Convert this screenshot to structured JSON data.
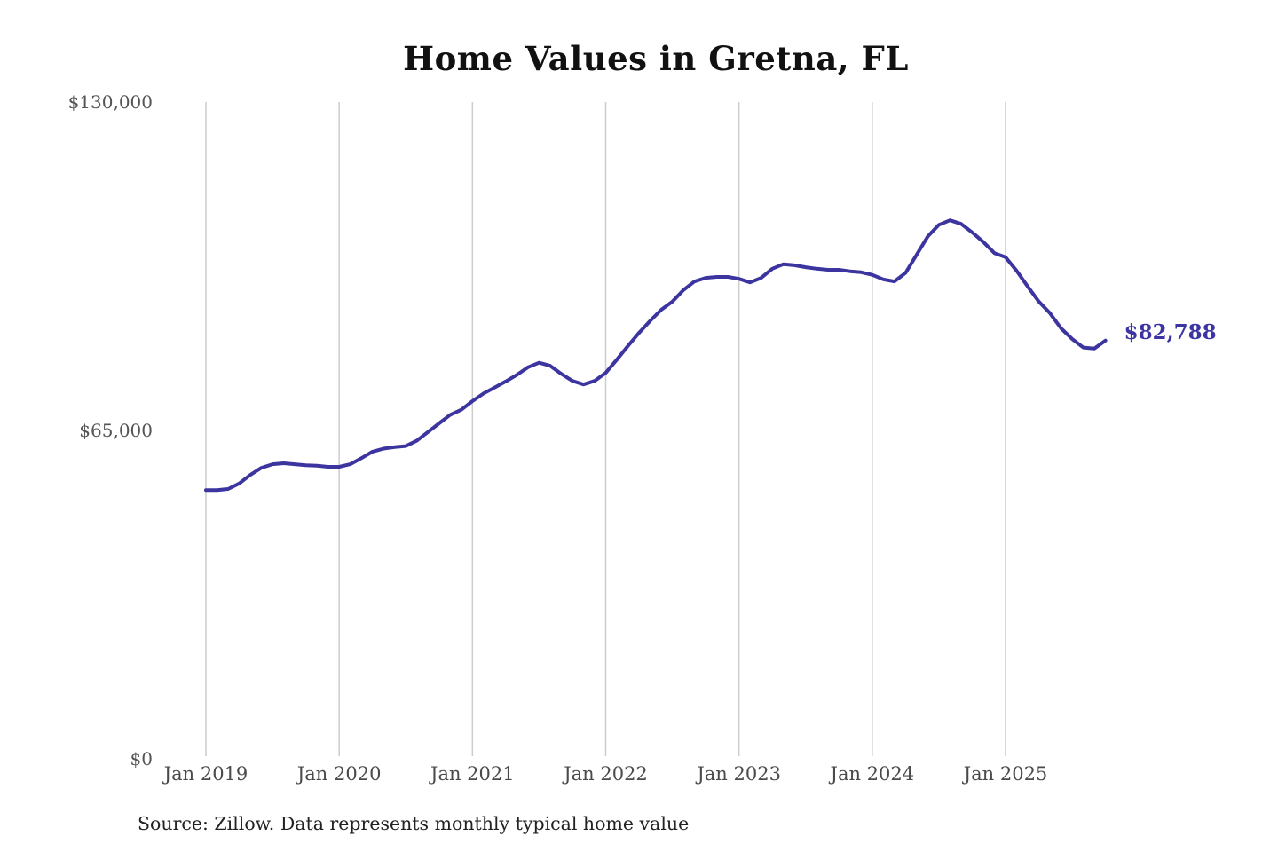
{
  "title": "Home Values in Gretna, FL",
  "source_note": "Source: Zillow. Data represents monthly typical home value",
  "colors": {
    "line": "#3c35a0",
    "end_label_text": "#3b34a2",
    "gridline": "#cccccc",
    "x_axis_text": "#4a4a4a",
    "y_axis_text": "#555555",
    "title_text": "#111111",
    "background": "#ffffff"
  },
  "chart_data": {
    "type": "line",
    "title": "Home Values in Gretna, FL",
    "unit": "USD",
    "grid": "vertical-only",
    "legend": "none",
    "ylim": [
      0,
      130000
    ],
    "y_ticks": [
      {
        "label": "$130,000",
        "value": 130000
      },
      {
        "label": "$65,000",
        "value": 65000
      },
      {
        "label": "$0",
        "value": 0
      }
    ],
    "x_ticks": [
      "Jan 2019",
      "Jan 2020",
      "Jan 2021",
      "Jan 2022",
      "Jan 2023",
      "Jan 2024",
      "Jan 2025"
    ],
    "months_per_x_tick": 12,
    "start_month": "Jan 2019",
    "end_month": "Oct 2025",
    "last_value": 82788,
    "last_value_label": "$82,788",
    "series": [
      {
        "name": "Monthly typical home value",
        "values": [
          53200,
          53200,
          53400,
          54500,
          56200,
          57600,
          58300,
          58500,
          58300,
          58100,
          58000,
          57800,
          57800,
          58300,
          59500,
          60800,
          61400,
          61700,
          61900,
          63000,
          64700,
          66400,
          68100,
          69100,
          70800,
          72300,
          73500,
          74700,
          76000,
          77500,
          78400,
          77800,
          76200,
          74800,
          74100,
          74800,
          76400,
          79000,
          81700,
          84300,
          86700,
          88900,
          90500,
          92800,
          94500,
          95200,
          95400,
          95400,
          95000,
          94300,
          95200,
          97000,
          97900,
          97700,
          97300,
          97000,
          96800,
          96800,
          96500,
          96300,
          95800,
          94900,
          94500,
          96200,
          99800,
          103400,
          105700,
          106600,
          105900,
          104200,
          102300,
          100100,
          99300,
          96600,
          93500,
          90500,
          88200,
          85200,
          83100,
          81400,
          81200,
          82788
        ]
      }
    ]
  }
}
